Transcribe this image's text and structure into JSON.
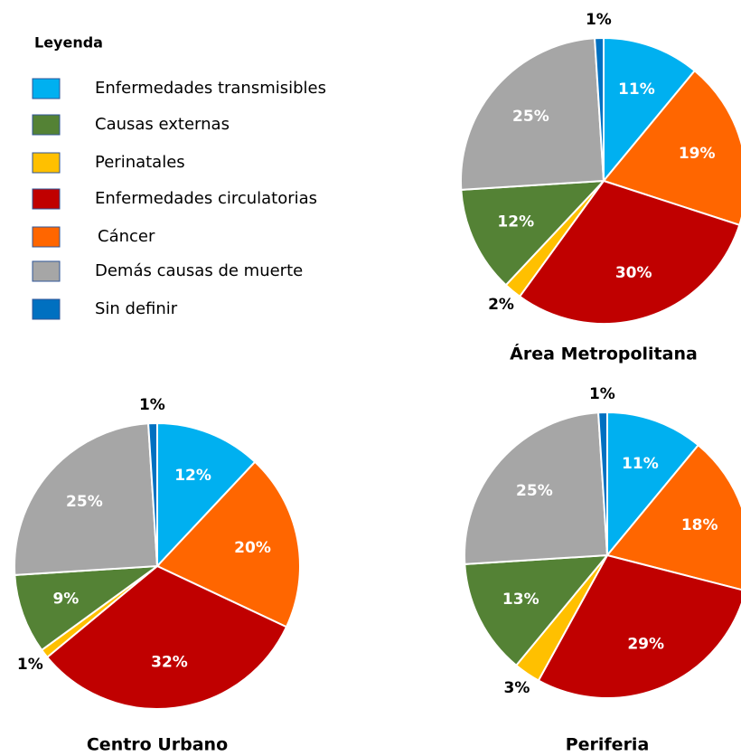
{
  "legend": {
    "title": "Leyenda",
    "entries": [
      {
        "name": "Enfermedades transmisibles",
        "color": "#00b0f0"
      },
      {
        "name": "Causas externas",
        "color": "#548235"
      },
      {
        "name": "Perinatales",
        "color": "#ffc000"
      },
      {
        "name": "Enfermedades circulatorias",
        "color": "#c00000"
      },
      {
        "name": "Cáncer",
        "color": "#ff6600"
      },
      {
        "name": "Demás causas de muerte",
        "color": "#a6a6a6"
      },
      {
        "name": "Sin definir",
        "color": "#0070c0"
      }
    ]
  },
  "chart_data": [
    {
      "type": "pie",
      "title": "Área Metropolitana",
      "values": [
        11,
        12,
        2,
        30,
        19,
        25,
        1
      ],
      "value_labels": [
        "11%",
        "12%",
        "2%",
        "30%",
        "19%",
        "25%",
        "1%"
      ]
    },
    {
      "type": "pie",
      "title": "Centro Urbano",
      "values": [
        12,
        9,
        1,
        32,
        20,
        25,
        1
      ],
      "value_labels": [
        "12%",
        "9%",
        "1%",
        "32%",
        "20%",
        "25%",
        "1%"
      ]
    },
    {
      "type": "pie",
      "title": "Periferia",
      "values": [
        11,
        13,
        3,
        29,
        18,
        25,
        1
      ],
      "value_labels": [
        "11%",
        "13%",
        "3%",
        "29%",
        "18%",
        "25%",
        "1%"
      ]
    }
  ]
}
